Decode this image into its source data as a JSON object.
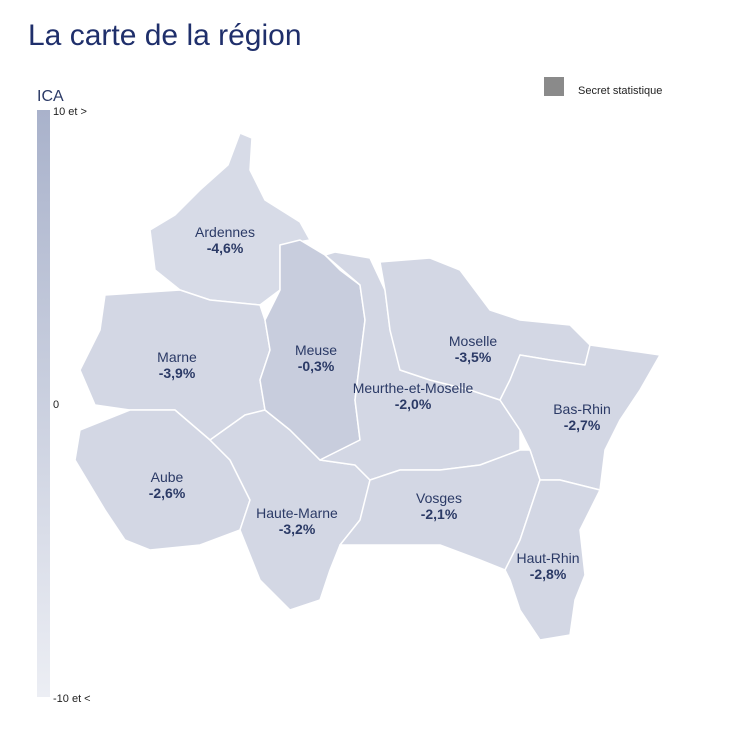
{
  "header": {
    "title": "La carte de la région"
  },
  "legend": {
    "title": "ICA",
    "max_label": "10 et >",
    "mid_label": "0",
    "min_label": "-10 et <",
    "secret_label": "Secret statistique"
  },
  "regions": [
    {
      "name": "Ardennes",
      "value": "-4,6%"
    },
    {
      "name": "Marne",
      "value": "-3,9%"
    },
    {
      "name": "Meuse",
      "value": "-0,3%"
    },
    {
      "name": "Moselle",
      "value": "-3,5%"
    },
    {
      "name": "Meurthe-et-Moselle",
      "value": "-2,0%"
    },
    {
      "name": "Bas-Rhin",
      "value": "-2,7%"
    },
    {
      "name": "Aube",
      "value": "-2,6%"
    },
    {
      "name": "Haute-Marne",
      "value": "-3,2%"
    },
    {
      "name": "Vosges",
      "value": "-2,1%"
    },
    {
      "name": "Haut-Rhin",
      "value": "-2,8%"
    }
  ]
}
